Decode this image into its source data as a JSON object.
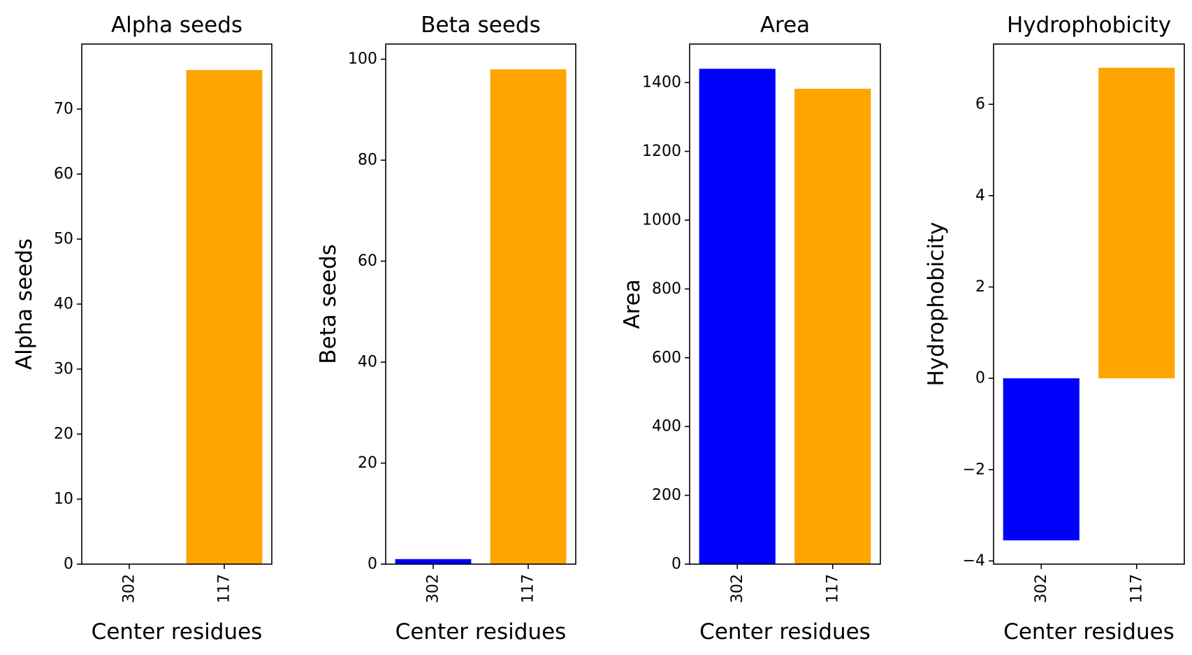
{
  "chart_data": [
    {
      "type": "bar",
      "title": "Alpha seeds",
      "xlabel": "Center residues",
      "ylabel": "Alpha seeds",
      "categories": [
        "302",
        "117"
      ],
      "values": [
        0,
        76
      ],
      "colors": [
        "#0000ff",
        "#ffa500"
      ],
      "ylim": [
        0,
        80
      ],
      "yticks": [
        0,
        10,
        20,
        30,
        40,
        50,
        60,
        70
      ],
      "grid": false
    },
    {
      "type": "bar",
      "title": "Beta seeds",
      "xlabel": "Center residues",
      "ylabel": "Beta seeds",
      "categories": [
        "302",
        "117"
      ],
      "values": [
        1,
        98
      ],
      "colors": [
        "#0000ff",
        "#ffa500"
      ],
      "ylim": [
        0,
        103
      ],
      "yticks": [
        0,
        20,
        40,
        60,
        80,
        100
      ],
      "grid": false
    },
    {
      "type": "bar",
      "title": "Area",
      "xlabel": "Center residues",
      "ylabel": "Area",
      "categories": [
        "302",
        "117"
      ],
      "values": [
        1440,
        1382
      ],
      "colors": [
        "#0000ff",
        "#ffa500"
      ],
      "ylim": [
        0,
        1512
      ],
      "yticks": [
        0,
        200,
        400,
        600,
        800,
        1000,
        1200,
        1400
      ],
      "grid": false
    },
    {
      "type": "bar",
      "title": "Hydrophobicity",
      "xlabel": "Center residues",
      "ylabel": "Hydrophobicity",
      "categories": [
        "302",
        "117"
      ],
      "values": [
        -3.55,
        6.8
      ],
      "colors": [
        "#0000ff",
        "#ffa500"
      ],
      "ylim": [
        -4.07,
        7.32
      ],
      "yticks": [
        -4,
        -2,
        0,
        2,
        4,
        6
      ],
      "ytick_labels": [
        "−4",
        "−2",
        "0",
        "2",
        "4",
        "6"
      ],
      "grid": false
    }
  ]
}
